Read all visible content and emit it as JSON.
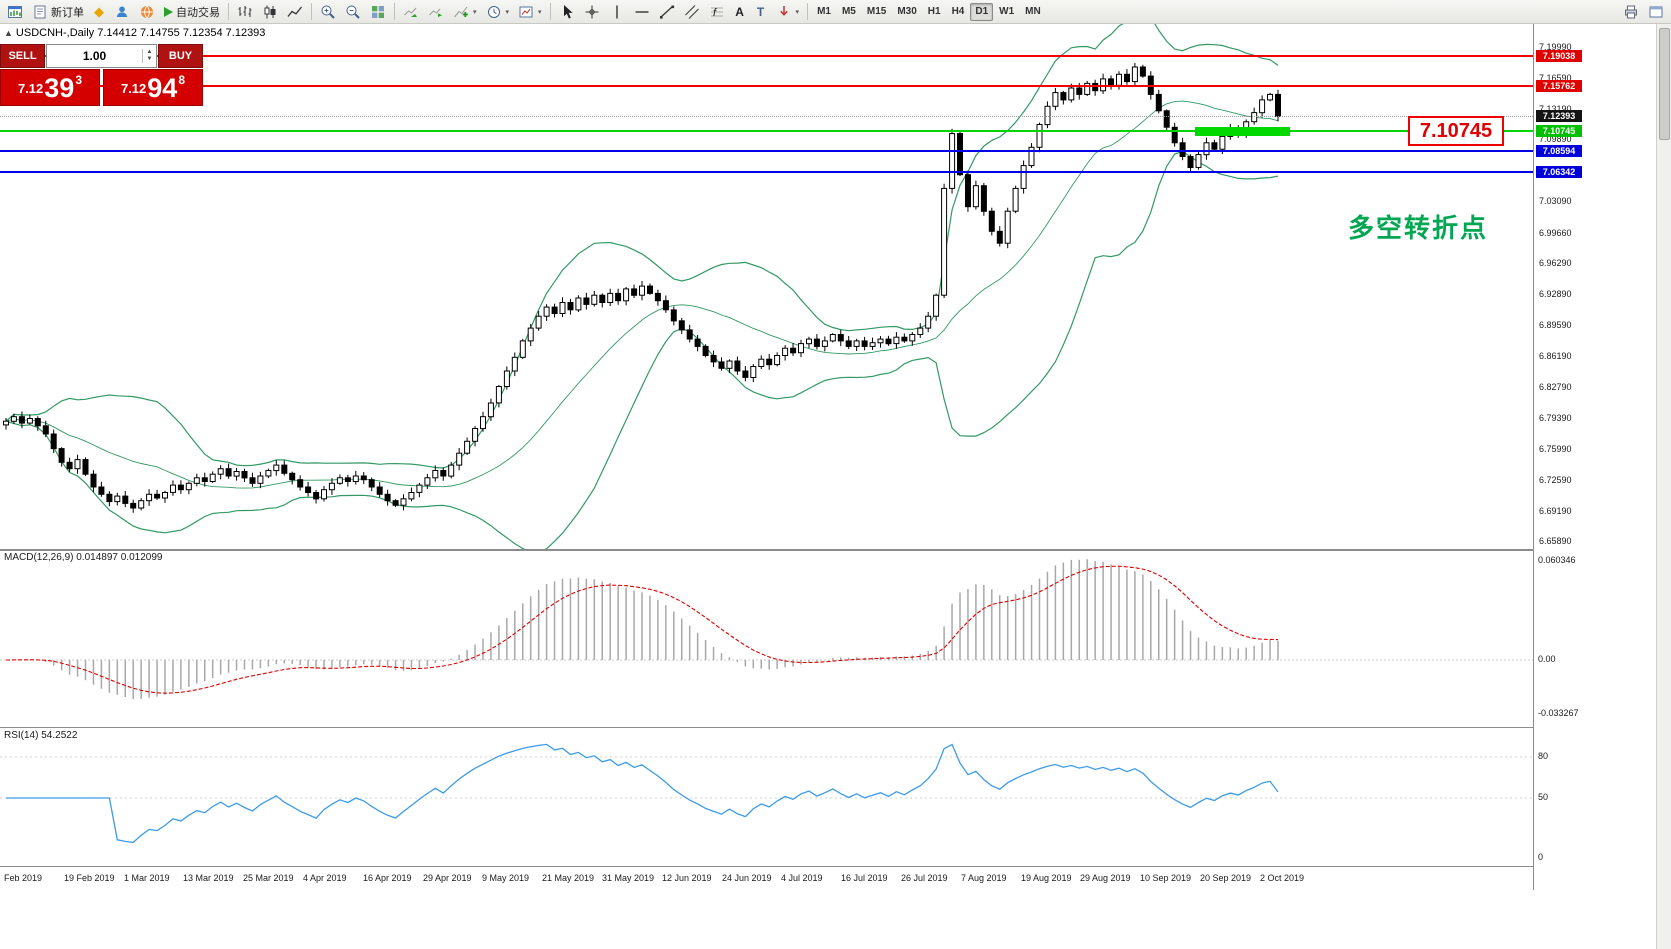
{
  "toolbar": {
    "new_order_label": "新订单",
    "autotrading_label": "自动交易",
    "timeframes": [
      "M1",
      "M5",
      "M15",
      "M30",
      "H1",
      "H4",
      "D1",
      "W1",
      "MN"
    ],
    "active_timeframe": "D1"
  },
  "window": {
    "title": "USDCNH-,Daily 7.14412 7.14755 7.12354 7.12393"
  },
  "trade_panel": {
    "sell_label": "SELL",
    "buy_label": "BUY",
    "volume": "1.00",
    "sell_price": {
      "big": "7.12",
      "pips": "39",
      "sup": "3"
    },
    "buy_price": {
      "big": "7.12",
      "pips": "94",
      "sup": "8"
    }
  },
  "annotation": {
    "text": "多空转折点",
    "color": "#00a651"
  },
  "level_label": {
    "text": "7.10745"
  },
  "levels": {
    "red": [
      7.19038,
      7.15762
    ],
    "green": [
      7.10745
    ],
    "blue": [
      7.08594,
      7.06342
    ],
    "current": 7.12393
  },
  "price_axis": {
    "labels": [
      {
        "text": "7.19990",
        "price": 7.1999
      },
      {
        "text": "7.16590",
        "price": 7.1659
      },
      {
        "text": "7.13190",
        "price": 7.1319
      },
      {
        "text": "7.09890",
        "price": 7.0989
      },
      {
        "text": "7.06490",
        "price": 7.0649
      },
      {
        "text": "7.03090",
        "price": 7.0309
      },
      {
        "text": "6.99660",
        "price": 6.9966
      },
      {
        "text": "6.96290",
        "price": 6.9629
      },
      {
        "text": "6.92890",
        "price": 6.9289
      },
      {
        "text": "6.89590",
        "price": 6.8959
      },
      {
        "text": "6.86190",
        "price": 6.8619
      },
      {
        "text": "6.82790",
        "price": 6.8279
      },
      {
        "text": "6.79390",
        "price": 6.7939
      },
      {
        "text": "6.75990",
        "price": 6.7599
      },
      {
        "text": "6.72590",
        "price": 6.7259
      },
      {
        "text": "6.69190",
        "price": 6.6919
      },
      {
        "text": "6.65890",
        "price": 6.6589
      }
    ],
    "badges": [
      {
        "text": "7.19038",
        "price": 7.19038,
        "bg": "#e00000"
      },
      {
        "text": "7.15762",
        "price": 7.15762,
        "bg": "#e00000"
      },
      {
        "text": "7.12393",
        "price": 7.12393,
        "bg": "#141414"
      },
      {
        "text": "7.10745",
        "price": 7.10745,
        "bg": "#00c000"
      },
      {
        "text": "7.08594",
        "price": 7.08594,
        "bg": "#0000dd"
      },
      {
        "text": "7.06342",
        "price": 7.06342,
        "bg": "#0000dd"
      }
    ]
  },
  "macd": {
    "header": "MACD(12,26,9) 0.014897 0.012099",
    "axis_top": "0.060346",
    "axis_zero": "0.00",
    "axis_bottom": "-0.033267",
    "fast": 12,
    "slow": 26,
    "signal": 9
  },
  "rsi": {
    "header": "RSI(14) 54.2522",
    "axis": [
      "80",
      "50",
      "0"
    ],
    "period": 14
  },
  "date_axis": [
    "Feb 2019",
    "19 Feb 2019",
    "1 Mar 2019",
    "13 Mar 2019",
    "25 Mar 2019",
    "4 Apr 2019",
    "16 Apr 2019",
    "29 Apr 2019",
    "9 May 2019",
    "21 May 2019",
    "31 May 2019",
    "12 Jun 2019",
    "24 Jun 2019",
    "4 Jul 2019",
    "16 Jul 2019",
    "26 Jul 2019",
    "7 Aug 2019",
    "19 Aug 2019",
    "29 Aug 2019",
    "10 Sep 2019",
    "20 Sep 2019",
    "2 Oct 2019"
  ],
  "chart_data": {
    "type": "candlestick",
    "symbol": "USDCNH",
    "timeframe": "Daily",
    "price_range": [
      6.6589,
      7.1999
    ],
    "indicators": [
      "Bollinger Bands(20,2)",
      "MACD(12,26,9)",
      "RSI(14)"
    ],
    "closes": [
      6.79,
      6.795,
      6.788,
      6.793,
      6.785,
      6.776,
      6.76,
      6.745,
      6.738,
      6.748,
      6.732,
      6.718,
      6.71,
      6.702,
      6.708,
      6.7,
      6.695,
      6.703,
      6.71,
      6.706,
      6.712,
      6.72,
      6.715,
      6.722,
      6.728,
      6.724,
      6.732,
      6.738,
      6.73,
      6.735,
      6.728,
      6.722,
      6.73,
      6.736,
      6.742,
      6.733,
      6.726,
      6.718,
      6.712,
      6.705,
      6.715,
      6.722,
      6.728,
      6.724,
      6.73,
      6.726,
      6.718,
      6.71,
      6.703,
      6.698,
      6.705,
      6.712,
      6.72,
      6.728,
      6.736,
      6.73,
      6.742,
      6.755,
      6.768,
      6.782,
      6.795,
      6.81,
      6.828,
      6.845,
      6.86,
      6.878,
      6.892,
      6.905,
      6.915,
      6.908,
      6.92,
      6.912,
      6.925,
      6.918,
      6.928,
      6.92,
      6.93,
      6.922,
      6.935,
      6.928,
      6.938,
      6.93,
      6.922,
      6.912,
      6.9,
      6.89,
      6.88,
      6.872,
      6.862,
      6.855,
      6.848,
      6.856,
      6.845,
      6.838,
      6.85,
      6.858,
      6.852,
      6.862,
      6.87,
      6.865,
      6.875,
      6.88,
      6.872,
      6.878,
      6.885,
      6.878,
      6.872,
      6.878,
      6.872,
      6.876,
      6.88,
      6.875,
      6.882,
      6.878,
      6.885,
      6.892,
      6.905,
      6.928,
      7.045,
      7.105,
      7.06,
      7.025,
      7.048,
      7.02,
      6.998,
      6.985,
      7.02,
      7.045,
      7.07,
      7.09,
      7.115,
      7.135,
      7.15,
      7.142,
      7.155,
      7.148,
      7.16,
      7.152,
      7.165,
      7.158,
      7.17,
      7.162,
      7.178,
      7.168,
      7.148,
      7.13,
      7.112,
      7.095,
      7.08,
      7.068,
      7.082,
      7.095,
      7.088,
      7.102,
      7.11,
      7.105,
      7.118,
      7.128,
      7.142,
      7.148,
      7.124
    ]
  }
}
